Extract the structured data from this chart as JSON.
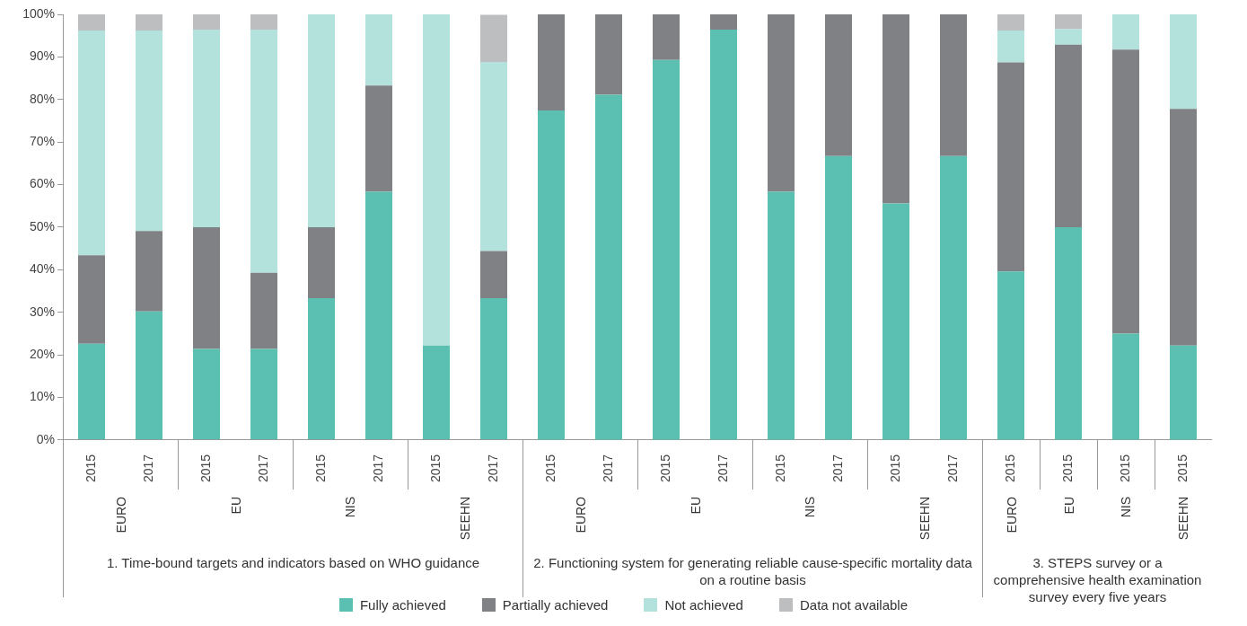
{
  "chart_data": [
    {
      "type": "bar",
      "stacked": true,
      "xlabel": "1. Time-bound targets and indicators based on WHO guidance",
      "annotations": [
        "EURO",
        "EU",
        "NIS",
        "SEEHN"
      ],
      "categories": [
        "2015",
        "2017",
        "2015",
        "2017",
        "2015",
        "2017",
        "2015",
        "2017"
      ],
      "series": [
        {
          "name": "Fully achieved",
          "color": "#5bc0b1",
          "values": [
            22.6,
            30.2,
            21.4,
            21.4,
            33.3,
            58.3,
            22.2,
            33.3
          ]
        },
        {
          "name": "Partially achieved",
          "color": "#808184",
          "values": [
            20.8,
            18.9,
            28.6,
            17.9,
            16.7,
            25.0,
            0,
            11.1
          ]
        },
        {
          "name": "Not achieved",
          "color": "#b3e1db",
          "values": [
            52.8,
            47.1,
            46.4,
            57.1,
            50.0,
            16.7,
            77.8,
            44.4
          ]
        },
        {
          "name": "Data not available",
          "color": "#bcbec0",
          "values": [
            3.8,
            3.8,
            3.6,
            3.6,
            0,
            0,
            0,
            11.1
          ]
        }
      ],
      "ylim": [
        0,
        100
      ],
      "yticks": [
        {
          "value": 0,
          "label": "0%"
        },
        {
          "value": 10,
          "label": "10%"
        },
        {
          "value": 20,
          "label": "20%"
        },
        {
          "value": 30,
          "label": "30%"
        },
        {
          "value": 40,
          "label": "40%"
        },
        {
          "value": 50,
          "label": "50%"
        },
        {
          "value": 60,
          "label": "60%"
        },
        {
          "value": 70,
          "label": "70%"
        },
        {
          "value": 80,
          "label": "80%"
        },
        {
          "value": 90,
          "label": "90%"
        },
        {
          "value": 100,
          "label": "100%"
        }
      ],
      "legend": "bottom"
    },
    {
      "type": "bar",
      "stacked": true,
      "xlabel": "2. Functioning system for generating reliable cause-specific mortality data on a routine basis",
      "annotations": [
        "EURO",
        "EU",
        "NIS",
        "SEEHN"
      ],
      "categories": [
        "2015",
        "2017",
        "2015",
        "2017",
        "2015",
        "2017",
        "2015",
        "2017"
      ],
      "series": [
        {
          "color": "#5bc0b1",
          "values": [
            77.4,
            81.1,
            89.3,
            96.4,
            58.3,
            66.7,
            55.6,
            66.7
          ]
        },
        {
          "color": "#808184",
          "values": [
            22.6,
            18.9,
            10.7,
            3.6,
            41.7,
            33.3,
            44.4,
            33.3
          ]
        }
      ],
      "ylim": [
        0,
        100
      ],
      "tick_labels": "x"
    },
    {
      "type": "bar",
      "stacked": true,
      "xlabel": "3. STEPS survey or a comprehensive health examination survey every five years",
      "annotations": [
        "EURO",
        "EU",
        "NIS",
        "SEEHN"
      ],
      "categories": [
        "2015",
        "2015",
        "2015",
        "2015"
      ],
      "series": [
        {
          "color": "#5bc0b1",
          "values": [
            39.6,
            50.0,
            25.0,
            22.2
          ]
        },
        {
          "color": "#808184",
          "values": [
            49.1,
            42.9,
            66.7,
            55.6
          ]
        },
        {
          "color": "#b3e1db",
          "values": [
            7.5,
            3.6,
            8.3,
            22.2
          ]
        },
        {
          "color": "#bcbec0",
          "values": [
            3.8,
            3.6,
            0,
            0
          ]
        }
      ],
      "ylim": [
        0,
        100
      ],
      "tick_labels": "x"
    }
  ]
}
